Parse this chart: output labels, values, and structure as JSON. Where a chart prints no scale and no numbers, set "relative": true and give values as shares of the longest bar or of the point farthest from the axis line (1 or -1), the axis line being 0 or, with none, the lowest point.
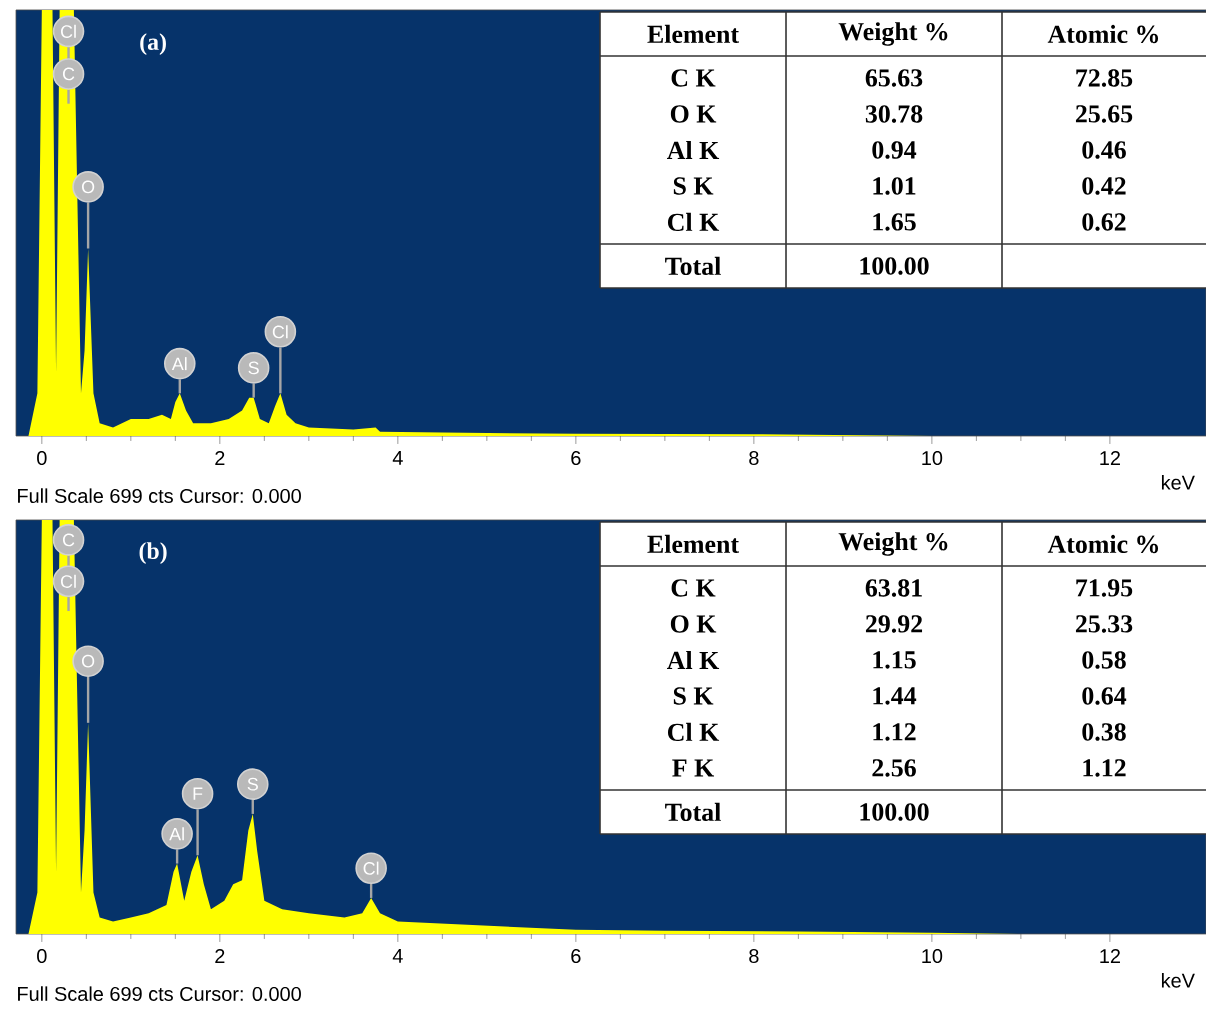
{
  "chart_data": [
    {
      "type": "area",
      "title": "(a)",
      "xlabel": "keV",
      "relative": true,
      "tick_labels": "x",
      "xlim": [
        -0.29,
        13.08
      ],
      "xticks": [
        0,
        2,
        4,
        6,
        8,
        10,
        12
      ],
      "series": [
        {
          "color": "#ffff00",
          "x": [
            -0.15,
            -0.05,
            0.0,
            0.12,
            0.16,
            0.2,
            0.36,
            0.44,
            0.48,
            0.52,
            0.58,
            0.65,
            0.8,
            1.0,
            1.2,
            1.35,
            1.45,
            1.5,
            1.55,
            1.62,
            1.7,
            1.9,
            2.1,
            2.25,
            2.33,
            2.38,
            2.45,
            2.55,
            2.62,
            2.68,
            2.75,
            2.85,
            3.0,
            3.5,
            3.75,
            3.8,
            4.5,
            6,
            8,
            9,
            10,
            13
          ],
          "values": [
            0,
            0.1,
            1,
            1,
            0.15,
            1,
            1,
            0.1,
            0.2,
            0.44,
            0.1,
            0.03,
            0.02,
            0.04,
            0.04,
            0.05,
            0.04,
            0.08,
            0.1,
            0.06,
            0.03,
            0.03,
            0.04,
            0.06,
            0.09,
            0.09,
            0.04,
            0.03,
            0.07,
            0.1,
            0.05,
            0.03,
            0.02,
            0.015,
            0.02,
            0.01,
            0.008,
            0.005,
            0.004,
            0.002,
            0,
            0
          ]
        }
      ],
      "annotations": [
        "Full Scale 699 cts Cursor: 0.000",
        {
          "text": "Cl",
          "x": 0.3,
          "y": 0.88
        },
        {
          "text": "C",
          "x": 0.3,
          "y": 0.78
        },
        {
          "text": "O",
          "x": 0.52,
          "y": 0.44
        },
        {
          "text": "Al",
          "x": 1.55,
          "y": 0.1
        },
        {
          "text": "S",
          "x": 2.38,
          "y": 0.09
        },
        {
          "text": "Cl",
          "x": 2.68,
          "y": 0.1
        },
        "Element",
        "Weight %",
        "Atomic %",
        "C K",
        "65.63",
        "72.85",
        "O K",
        "30.78",
        "25.65",
        "Al K",
        "0.94",
        "0.46",
        "S K",
        "1.01",
        "0.42",
        "Cl K",
        "1.65",
        "0.62",
        "Total",
        "100.00"
      ]
    },
    {
      "type": "area",
      "title": "(b)",
      "xlabel": "keV",
      "relative": true,
      "tick_labels": "x",
      "xlim": [
        -0.29,
        13.08
      ],
      "xticks": [
        0,
        2,
        4,
        6,
        8,
        10,
        12
      ],
      "series": [
        {
          "color": "#ffff00",
          "x": [
            -0.15,
            -0.05,
            0,
            0.12,
            0.16,
            0.2,
            0.36,
            0.44,
            0.48,
            0.52,
            0.58,
            0.65,
            0.8,
            1.0,
            1.2,
            1.4,
            1.48,
            1.52,
            1.6,
            1.68,
            1.75,
            1.82,
            1.9,
            2.05,
            2.15,
            2.25,
            2.32,
            2.37,
            2.42,
            2.5,
            2.7,
            3.0,
            3.4,
            3.6,
            3.7,
            3.8,
            4.0,
            5,
            6,
            7,
            8.5,
            10,
            11,
            13
          ],
          "values": [
            0,
            0.1,
            1,
            1,
            0.15,
            1,
            1,
            0.1,
            0.25,
            0.51,
            0.1,
            0.04,
            0.03,
            0.04,
            0.05,
            0.07,
            0.15,
            0.17,
            0.08,
            0.15,
            0.19,
            0.12,
            0.06,
            0.08,
            0.12,
            0.13,
            0.25,
            0.29,
            0.2,
            0.08,
            0.06,
            0.05,
            0.04,
            0.05,
            0.087,
            0.05,
            0.03,
            0.02,
            0.01,
            0.008,
            0.006,
            0.003,
            0,
            0
          ]
        }
      ],
      "annotations": [
        "Full Scale 699 cts Cursor: 0.000",
        {
          "text": "C",
          "x": 0.3,
          "y": 0.88
        },
        {
          "text": "Cl",
          "x": 0.3,
          "y": 0.78
        },
        {
          "text": "O",
          "x": 0.52,
          "y": 0.51
        },
        {
          "text": "Al",
          "x": 1.52,
          "y": 0.17
        },
        {
          "text": "F",
          "x": 1.75,
          "y": 0.19
        },
        {
          "text": "S",
          "x": 2.37,
          "y": 0.29
        },
        {
          "text": "Cl",
          "x": 3.7,
          "y": 0.087
        },
        "Element",
        "Weight %",
        "Atomic %",
        "C K",
        "63.81",
        "71.95",
        "O K",
        "29.92",
        "25.33",
        "Al K",
        "1.15",
        "0.58",
        "S K",
        "1.44",
        "0.64",
        "Cl K",
        "1.12",
        "0.38",
        "F K",
        "2.56",
        "1.12",
        "Total",
        "100.00"
      ]
    }
  ]
}
